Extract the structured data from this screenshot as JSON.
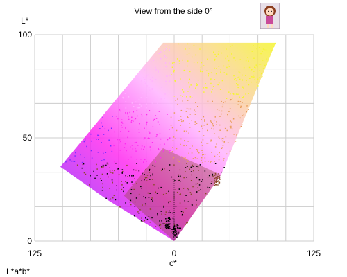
{
  "chart_data": {
    "type": "scatter",
    "title": "View from the side 0°",
    "xlabel": "c*",
    "ylabel": "L*",
    "color_space_label": "L*a*b*",
    "xlim": [
      -125,
      125
    ],
    "ylim": [
      0,
      100
    ],
    "x_ticks": [
      {
        "value": -125,
        "label": "125"
      },
      {
        "value": 0,
        "label": "0"
      },
      {
        "value": 125,
        "label": "125"
      }
    ],
    "y_ticks": [
      {
        "value": 0,
        "label": "0"
      },
      {
        "value": 50,
        "label": "50"
      },
      {
        "value": 100,
        "label": "100"
      }
    ],
    "grid": true,
    "gamut_outline": [
      {
        "x": -102,
        "y": 36
      },
      {
        "x": -10,
        "y": 96
      },
      {
        "x": 91,
        "y": 96
      },
      {
        "x": 42,
        "y": 32
      },
      {
        "x": 0,
        "y": 0
      },
      {
        "x": -60,
        "y": 20
      }
    ],
    "point_clusters": [
      {
        "name": "",
        "x": 38,
        "y": 30
      },
      {
        "name": "",
        "x": -6,
        "y": 9
      },
      {
        "name": "",
        "x": 1,
        "y": 5
      }
    ],
    "colors": {
      "violet": "#7a2cff",
      "magenta": "#ff2cf0",
      "pink": "#ffb3ff",
      "yellow": "#f5f530",
      "orange": "#e89d5a",
      "brown": "#8a4a2a",
      "black": "#000000",
      "grid": "#cccccc"
    },
    "icons": [
      "mascot-icon"
    ]
  }
}
